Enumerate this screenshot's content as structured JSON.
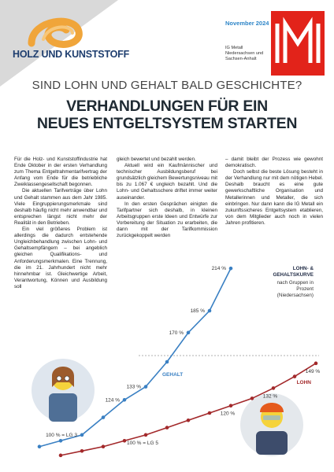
{
  "header": {
    "brand": "HOLZ UND KUNSTSTOFF",
    "date": "November 2024",
    "org": "IG Metall Niedersachsen und Sachsen-Anhalt"
  },
  "kicker": "SIND LOHN UND GEHALT BALD GESCHICHTE?",
  "headline": [
    "VERHANDLUNGEN FÜR EIN",
    "NEUES ENTGELTSYSTEM STARTEN"
  ],
  "body": {
    "columns": [
      {
        "paragraphs": [
          "Für die Holz- und Kunststoffindustrie hat Ende Oktober in der ersten Verhandlung zum Thema Entgeltrahmentarifvertrag der Anfang vom Ende für die betriebliche Zweiklassengesellschaft begonnen.",
          "Die aktuellen Tarifverträge über Lohn und Gehalt stammen aus dem Jahr 1985. Viele Eingruppierungsmerkmale sind deshalb häufig nicht mehr anwendbar und entsprechen längst nicht mehr der Realität in den Betrieben.",
          "Ein viel größeres Problem ist allerdings die dadurch entstehende Ungleichbehandlung zwischen Lohn- und Gehaltsempfängern – bei angeblich gleichen Qualifikations- und Anforderungsmerkmalen. Eine Trennung, die im 21. Jahrhundert nicht mehr hinnehmbar ist. Gleichwertige Arbeit, Verantwortung, Können und Ausbildung soll"
        ]
      },
      {
        "paragraphs": [
          "gleich bewertet und bezahlt werden.",
          "Aktuell wird ein Kaufmännischer und technischer Ausbildungsberuf bei grundsätzlich gleichem Bewertungsniveau mit bis zu 1.067 € ungleich bezahlt. Und die Lohn- und Gehaltsschere driftet immer weiter auseinander.",
          "In den ersten Gesprächen einigten die Tarifpartner sich deshalb, in kleinen Arbeitsgruppen erste Ideen und Entwürfe zur Vorbereitung der Situation zu erarbeiten, die dann mit der Tarifkommission zurückgekoppelt werden"
        ]
      },
      {
        "paragraphs": [
          "– damit bleibt der Prozess wie gewohnt demokratisch.",
          "Doch selbst die beste Lösung besteht in der Verhandlung nur mit dem nötigen Hebel. Deshalb braucht es eine gute gewerkschaftliche Organisation und Metallerinnen und Metaller, die sich einbringen. Nur dann kann die IG Metall ein zukunftssicheres Entgeltsystem etablieren, von dem Mitglieder auch noch in vielen Jahren profitieren."
        ]
      }
    ]
  },
  "chart_data": {
    "type": "line",
    "title": "LOHN- & GEHALTSKURVE",
    "subtitle": "nach Gruppen in Prozent (Niedersachsen)",
    "categories": [
      null,
      null,
      null,
      null,
      null,
      null,
      null,
      null,
      null,
      null,
      null,
      null,
      null,
      null
    ],
    "ylim": [
      80,
      220
    ],
    "series": [
      {
        "name": "GEHALT",
        "color": "#3a80c3",
        "values": [
          92,
          96,
          100,
          112,
          124,
          133,
          150,
          170,
          185,
          214,
          null,
          null,
          null,
          null
        ],
        "value_labels": [
          null,
          null,
          "100 % = LG 3",
          null,
          "124 %",
          "133 %",
          null,
          "170 %",
          "185 %",
          "214 %",
          null,
          null,
          null,
          null
        ]
      },
      {
        "name": "LOHN",
        "color": "#a3292b",
        "values": [
          null,
          86,
          89,
          92,
          96,
          100,
          105,
          110,
          115,
          120,
          125,
          132,
          140,
          149
        ],
        "value_labels": [
          null,
          null,
          null,
          null,
          null,
          "100 % = LG 5",
          null,
          null,
          null,
          "120 %",
          null,
          "132 %",
          null,
          "149 %"
        ]
      }
    ]
  }
}
